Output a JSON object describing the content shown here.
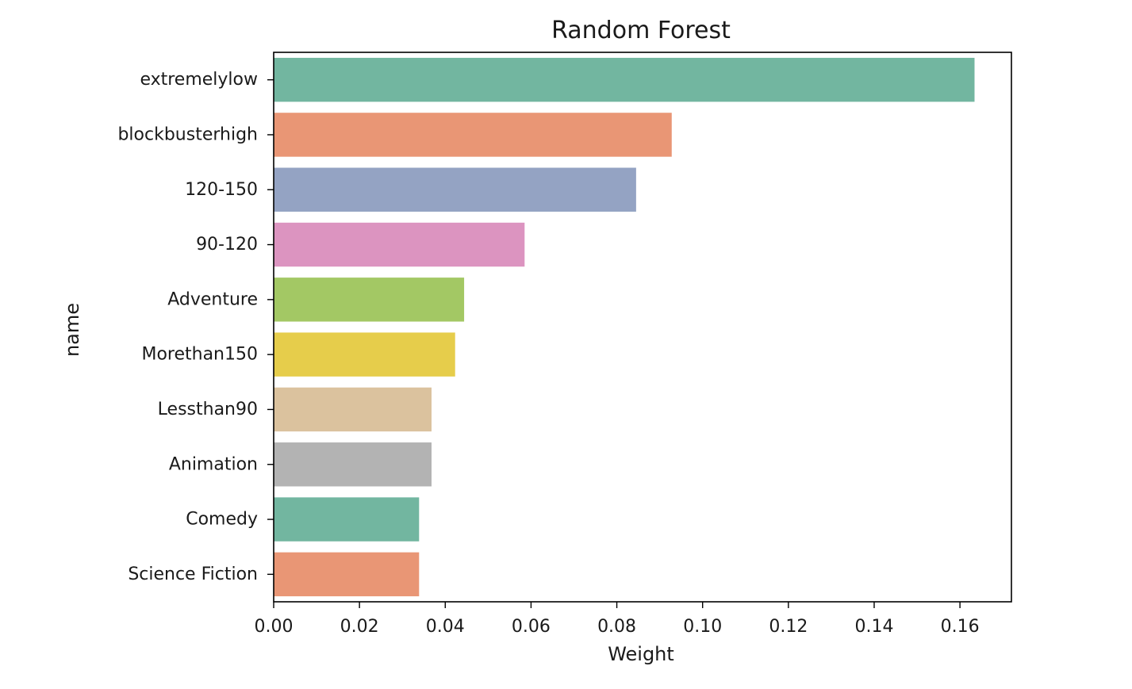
{
  "chart_data": {
    "type": "bar",
    "orientation": "horizontal",
    "title": "Random Forest",
    "xlabel": "Weight",
    "ylabel": "name",
    "xlim": [
      0,
      0.172
    ],
    "xticks": [
      0.0,
      0.02,
      0.04,
      0.06,
      0.08,
      0.1,
      0.12,
      0.14,
      0.16
    ],
    "xtick_labels": [
      "0.00",
      "0.02",
      "0.04",
      "0.06",
      "0.08",
      "0.10",
      "0.12",
      "0.14",
      "0.16"
    ],
    "categories": [
      "extremelylow",
      "blockbusterhigh",
      "120-150",
      "90-120",
      "Adventure",
      "Morethan150",
      "Lessthan90",
      "Animation",
      "Comedy",
      "Science Fiction"
    ],
    "values": [
      0.1634,
      0.0928,
      0.0845,
      0.0585,
      0.0444,
      0.0423,
      0.0368,
      0.0368,
      0.0339,
      0.0339
    ],
    "colors": [
      "#72b6a0",
      "#e99675",
      "#94a3c3",
      "#dc94c0",
      "#a3c864",
      "#e6cd4b",
      "#dbc29e",
      "#b3b3b3",
      "#72b6a0",
      "#e99675"
    ],
    "grid": false,
    "legend": false
  }
}
